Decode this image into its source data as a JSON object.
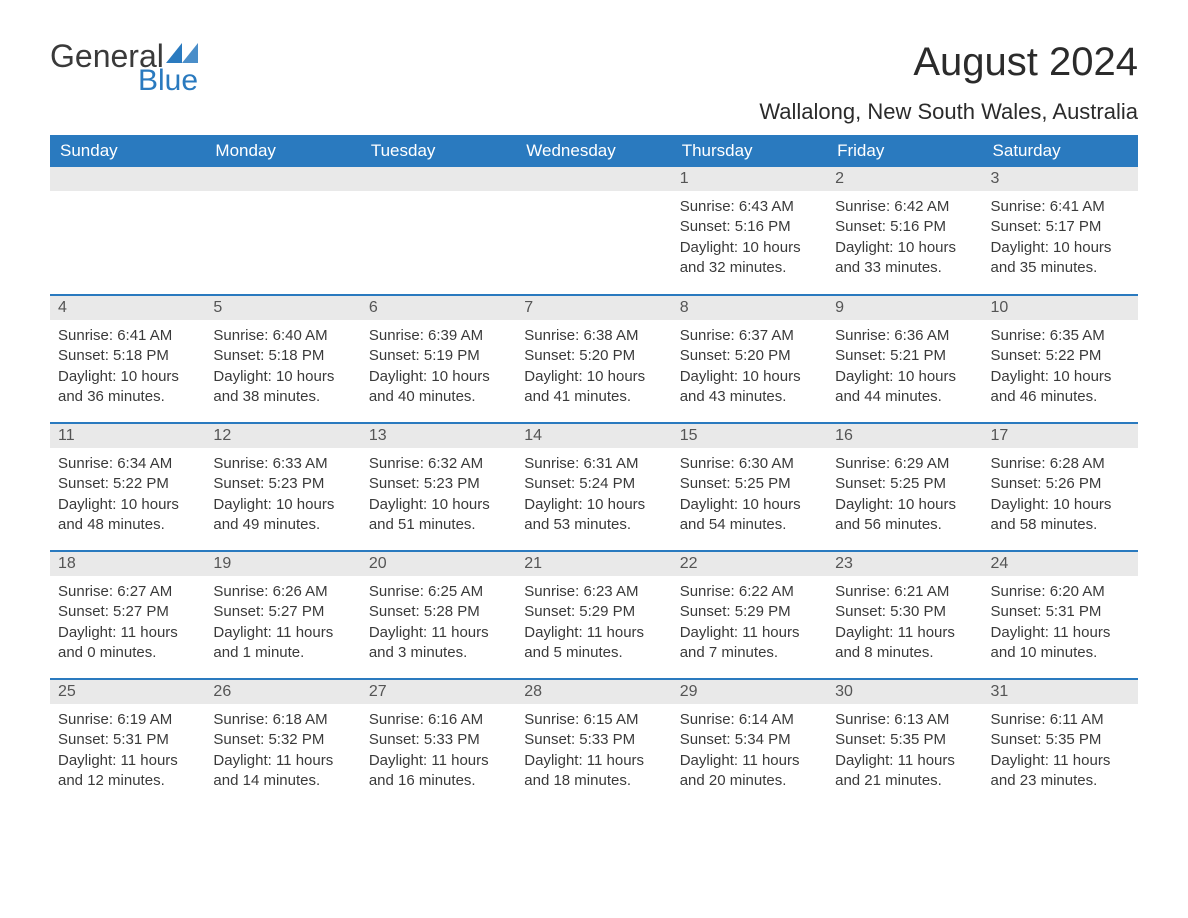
{
  "logo": {
    "general": "General",
    "blue": "Blue",
    "arrow_color": "#2a7abf"
  },
  "title": "August 2024",
  "location": "Wallalong, New South Wales, Australia",
  "colors": {
    "header_bg": "#2a7abf",
    "header_text": "#ffffff",
    "daynum_bg": "#e9e9e9",
    "row_border": "#2a7abf",
    "body_text": "#3a3a3a"
  },
  "typography": {
    "month_title_pt": 40,
    "location_pt": 22,
    "header_pt": 17,
    "daynum_pt": 16,
    "body_pt": 15
  },
  "layout": {
    "columns": 7,
    "rows": 5,
    "first_day_index": 4
  },
  "days_of_week": [
    "Sunday",
    "Monday",
    "Tuesday",
    "Wednesday",
    "Thursday",
    "Friday",
    "Saturday"
  ],
  "weeks": [
    [
      null,
      null,
      null,
      null,
      {
        "n": "1",
        "sunrise": "6:43 AM",
        "sunset": "5:16 PM",
        "daylight": "10 hours and 32 minutes."
      },
      {
        "n": "2",
        "sunrise": "6:42 AM",
        "sunset": "5:16 PM",
        "daylight": "10 hours and 33 minutes."
      },
      {
        "n": "3",
        "sunrise": "6:41 AM",
        "sunset": "5:17 PM",
        "daylight": "10 hours and 35 minutes."
      }
    ],
    [
      {
        "n": "4",
        "sunrise": "6:41 AM",
        "sunset": "5:18 PM",
        "daylight": "10 hours and 36 minutes."
      },
      {
        "n": "5",
        "sunrise": "6:40 AM",
        "sunset": "5:18 PM",
        "daylight": "10 hours and 38 minutes."
      },
      {
        "n": "6",
        "sunrise": "6:39 AM",
        "sunset": "5:19 PM",
        "daylight": "10 hours and 40 minutes."
      },
      {
        "n": "7",
        "sunrise": "6:38 AM",
        "sunset": "5:20 PM",
        "daylight": "10 hours and 41 minutes."
      },
      {
        "n": "8",
        "sunrise": "6:37 AM",
        "sunset": "5:20 PM",
        "daylight": "10 hours and 43 minutes."
      },
      {
        "n": "9",
        "sunrise": "6:36 AM",
        "sunset": "5:21 PM",
        "daylight": "10 hours and 44 minutes."
      },
      {
        "n": "10",
        "sunrise": "6:35 AM",
        "sunset": "5:22 PM",
        "daylight": "10 hours and 46 minutes."
      }
    ],
    [
      {
        "n": "11",
        "sunrise": "6:34 AM",
        "sunset": "5:22 PM",
        "daylight": "10 hours and 48 minutes."
      },
      {
        "n": "12",
        "sunrise": "6:33 AM",
        "sunset": "5:23 PM",
        "daylight": "10 hours and 49 minutes."
      },
      {
        "n": "13",
        "sunrise": "6:32 AM",
        "sunset": "5:23 PM",
        "daylight": "10 hours and 51 minutes."
      },
      {
        "n": "14",
        "sunrise": "6:31 AM",
        "sunset": "5:24 PM",
        "daylight": "10 hours and 53 minutes."
      },
      {
        "n": "15",
        "sunrise": "6:30 AM",
        "sunset": "5:25 PM",
        "daylight": "10 hours and 54 minutes."
      },
      {
        "n": "16",
        "sunrise": "6:29 AM",
        "sunset": "5:25 PM",
        "daylight": "10 hours and 56 minutes."
      },
      {
        "n": "17",
        "sunrise": "6:28 AM",
        "sunset": "5:26 PM",
        "daylight": "10 hours and 58 minutes."
      }
    ],
    [
      {
        "n": "18",
        "sunrise": "6:27 AM",
        "sunset": "5:27 PM",
        "daylight": "11 hours and 0 minutes."
      },
      {
        "n": "19",
        "sunrise": "6:26 AM",
        "sunset": "5:27 PM",
        "daylight": "11 hours and 1 minute."
      },
      {
        "n": "20",
        "sunrise": "6:25 AM",
        "sunset": "5:28 PM",
        "daylight": "11 hours and 3 minutes."
      },
      {
        "n": "21",
        "sunrise": "6:23 AM",
        "sunset": "5:29 PM",
        "daylight": "11 hours and 5 minutes."
      },
      {
        "n": "22",
        "sunrise": "6:22 AM",
        "sunset": "5:29 PM",
        "daylight": "11 hours and 7 minutes."
      },
      {
        "n": "23",
        "sunrise": "6:21 AM",
        "sunset": "5:30 PM",
        "daylight": "11 hours and 8 minutes."
      },
      {
        "n": "24",
        "sunrise": "6:20 AM",
        "sunset": "5:31 PM",
        "daylight": "11 hours and 10 minutes."
      }
    ],
    [
      {
        "n": "25",
        "sunrise": "6:19 AM",
        "sunset": "5:31 PM",
        "daylight": "11 hours and 12 minutes."
      },
      {
        "n": "26",
        "sunrise": "6:18 AM",
        "sunset": "5:32 PM",
        "daylight": "11 hours and 14 minutes."
      },
      {
        "n": "27",
        "sunrise": "6:16 AM",
        "sunset": "5:33 PM",
        "daylight": "11 hours and 16 minutes."
      },
      {
        "n": "28",
        "sunrise": "6:15 AM",
        "sunset": "5:33 PM",
        "daylight": "11 hours and 18 minutes."
      },
      {
        "n": "29",
        "sunrise": "6:14 AM",
        "sunset": "5:34 PM",
        "daylight": "11 hours and 20 minutes."
      },
      {
        "n": "30",
        "sunrise": "6:13 AM",
        "sunset": "5:35 PM",
        "daylight": "11 hours and 21 minutes."
      },
      {
        "n": "31",
        "sunrise": "6:11 AM",
        "sunset": "5:35 PM",
        "daylight": "11 hours and 23 minutes."
      }
    ]
  ],
  "labels": {
    "sunrise": "Sunrise:",
    "sunset": "Sunset:",
    "daylight": "Daylight:"
  }
}
